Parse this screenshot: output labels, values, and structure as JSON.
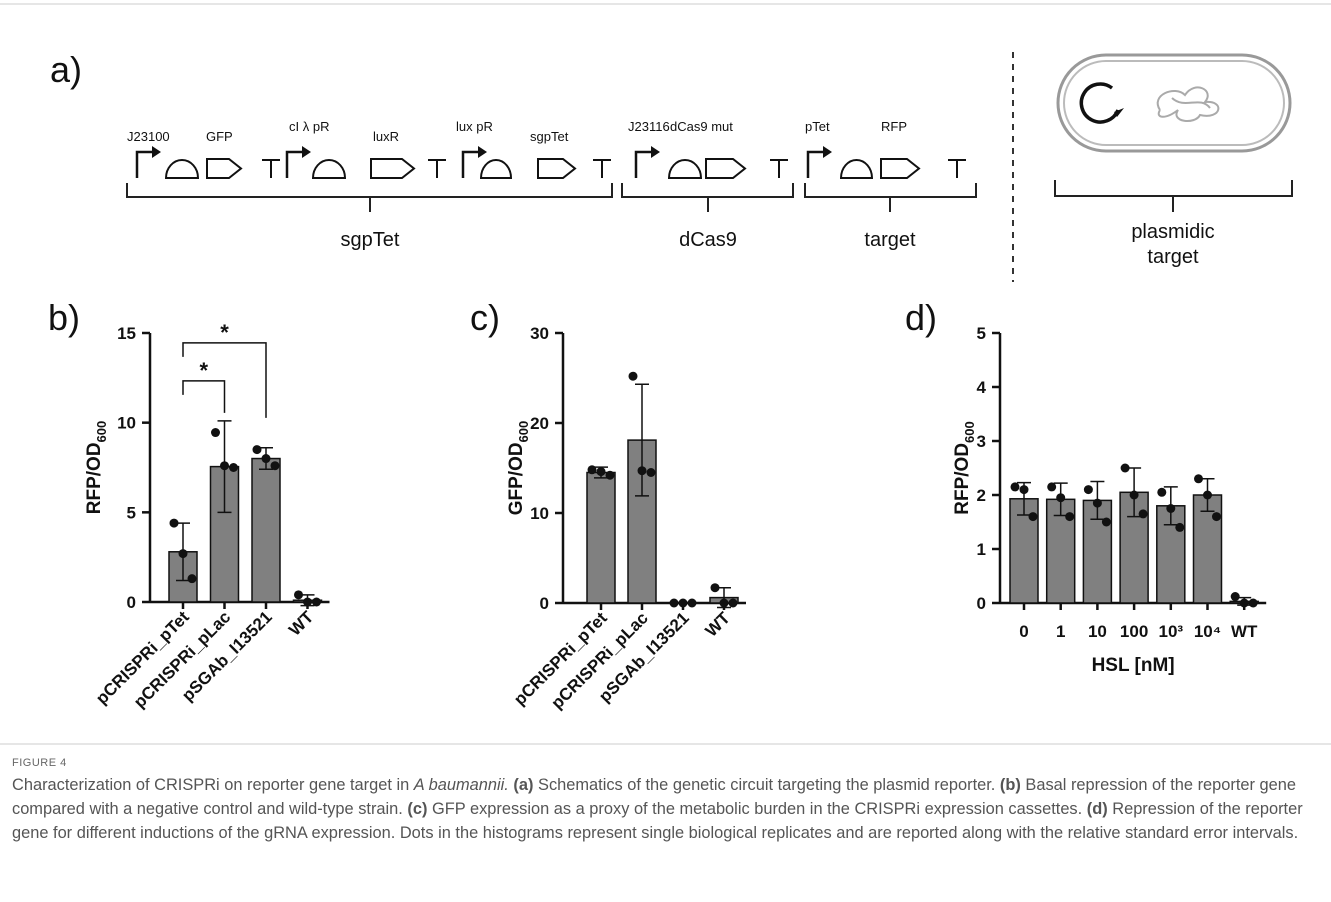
{
  "figure": {
    "panel_a": {
      "label": "a)",
      "part_labels": [
        "J23100",
        "GFP",
        "cI λ pR",
        "luxR",
        "lux pR",
        "sgpTet",
        "J23116",
        "dCas9 mut",
        "pTet",
        "RFP"
      ],
      "modules": [
        "sgpTet",
        "dCas9",
        "target"
      ],
      "plasmid_label": [
        "plasmidic",
        "target"
      ]
    },
    "caption": {
      "figure_label": "FIGURE 4",
      "runs": [
        {
          "text": "Characterization of CRISPRi on reporter gene target in ",
          "style": "normal"
        },
        {
          "text": "A baumannii. ",
          "style": "italic"
        },
        {
          "text": "(a)",
          "style": "bold"
        },
        {
          "text": " Schematics of the genetic circuit targeting the plasmid reporter. ",
          "style": "normal"
        },
        {
          "text": "(b)",
          "style": "bold"
        },
        {
          "text": " Basal repression of the reporter gene compared with a negative control and wild-type strain. ",
          "style": "normal"
        },
        {
          "text": "(c)",
          "style": "bold"
        },
        {
          "text": " GFP expression as a proxy of the metabolic burden in the CRISPRi expression cassettes. ",
          "style": "normal"
        },
        {
          "text": "(d)",
          "style": "bold"
        },
        {
          "text": " Repression of the reporter gene for different inductions of the gRNA expression. Dots in the histograms represent single biological replicates and are reported along with the relative standard error intervals.",
          "style": "normal"
        }
      ]
    }
  },
  "chart_data": [
    {
      "type": "bar",
      "panel_label": "b)",
      "ylabel": "RFP/OD",
      "ylabel_sub": "600",
      "color": "#808080",
      "xtick_rotation": 45,
      "categories": [
        "pCRISPRi_pTet",
        "pCRISPRi_pLac",
        "pSGAb_I13521",
        "WT"
      ],
      "values": [
        2.8,
        7.55,
        8.0,
        0.1
      ],
      "errors": [
        1.6,
        2.55,
        0.6,
        0.3
      ],
      "replicates": [
        [
          4.4,
          2.7,
          1.3
        ],
        [
          9.45,
          7.6,
          7.5
        ],
        [
          8.5,
          8.0,
          7.6
        ],
        [
          0.4,
          0.0,
          0.0
        ]
      ],
      "significance": [
        {
          "pair": [
            "pCRISPRi_pTet",
            "pCRISPRi_pLac"
          ],
          "label": "*"
        },
        {
          "pair": [
            "pCRISPRi_pTet",
            "pSGAb_I13521"
          ],
          "label": "*"
        }
      ],
      "ylim": [
        0,
        15
      ],
      "yticks": [
        0,
        5,
        10,
        15
      ]
    },
    {
      "type": "bar",
      "panel_label": "c)",
      "ylabel": "GFP/OD",
      "ylabel_sub": "600",
      "color": "#808080",
      "xtick_rotation": 45,
      "categories": [
        "pCRISPRi_pTet",
        "pCRISPRi_pLac",
        "pSGAb_I13521",
        "WT"
      ],
      "values": [
        14.5,
        18.1,
        0.0,
        0.6
      ],
      "errors": [
        0.6,
        6.2,
        0.0,
        1.1
      ],
      "replicates": [
        [
          14.8,
          14.6,
          14.2
        ],
        [
          25.2,
          14.7,
          14.5
        ],
        [
          0.0,
          0.0,
          0.0
        ],
        [
          1.7,
          0.0,
          0.0
        ]
      ],
      "ylim": [
        0,
        30
      ],
      "yticks": [
        0,
        10,
        20,
        30
      ]
    },
    {
      "type": "bar",
      "panel_label": "d)",
      "ylabel": "RFP/OD",
      "ylabel_sub": "600",
      "xlabel": "HSL [nM]",
      "color": "#808080",
      "xtick_rotation": 0,
      "categories": [
        "0",
        "1",
        "10",
        "100",
        "10³",
        "10⁴",
        "WT"
      ],
      "values": [
        1.93,
        1.92,
        1.9,
        2.05,
        1.8,
        2.0,
        0.03
      ],
      "errors": [
        0.3,
        0.3,
        0.35,
        0.45,
        0.35,
        0.3,
        0.07
      ],
      "replicates": [
        [
          2.15,
          2.1,
          1.6
        ],
        [
          2.15,
          1.95,
          1.6
        ],
        [
          2.1,
          1.85,
          1.5
        ],
        [
          2.5,
          2.0,
          1.65
        ],
        [
          2.05,
          1.75,
          1.4
        ],
        [
          2.3,
          2.0,
          1.6
        ],
        [
          0.12,
          0.0,
          0.0
        ]
      ],
      "ylim": [
        0,
        5
      ],
      "yticks": [
        0,
        1,
        2,
        3,
        4,
        5
      ]
    }
  ]
}
